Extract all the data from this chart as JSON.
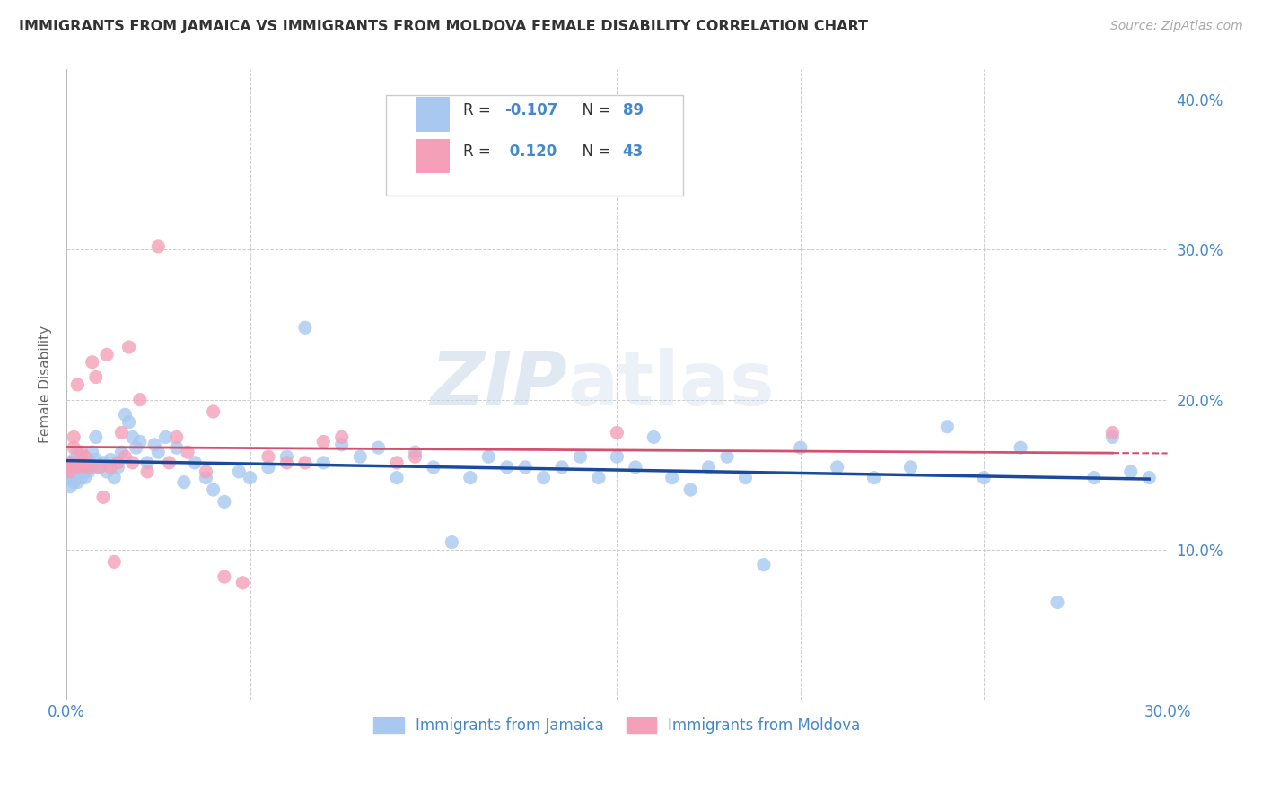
{
  "title": "IMMIGRANTS FROM JAMAICA VS IMMIGRANTS FROM MOLDOVA FEMALE DISABILITY CORRELATION CHART",
  "source": "Source: ZipAtlas.com",
  "ylabel": "Female Disability",
  "xlim": [
    0.0,
    0.3
  ],
  "ylim": [
    0.0,
    0.42
  ],
  "jamaica_color": "#a8c8f0",
  "moldova_color": "#f4a0b8",
  "jamaica_line_color": "#1a4a9e",
  "moldova_line_color": "#d45070",
  "watermark_zip": "ZIP",
  "watermark_atlas": "atlas",
  "tick_color": "#4488cc",
  "grid_color": "#cccccc",
  "background_color": "#ffffff",
  "title_color": "#333333",
  "jamaica_x": [
    0.001,
    0.001,
    0.001,
    0.001,
    0.001,
    0.002,
    0.002,
    0.002,
    0.002,
    0.002,
    0.003,
    0.003,
    0.003,
    0.003,
    0.004,
    0.004,
    0.004,
    0.005,
    0.005,
    0.006,
    0.006,
    0.007,
    0.007,
    0.008,
    0.008,
    0.009,
    0.01,
    0.011,
    0.012,
    0.013,
    0.014,
    0.015,
    0.016,
    0.017,
    0.018,
    0.019,
    0.02,
    0.022,
    0.024,
    0.025,
    0.027,
    0.03,
    0.032,
    0.035,
    0.038,
    0.04,
    0.043,
    0.047,
    0.05,
    0.055,
    0.06,
    0.065,
    0.07,
    0.075,
    0.08,
    0.085,
    0.09,
    0.095,
    0.1,
    0.105,
    0.11,
    0.115,
    0.12,
    0.125,
    0.13,
    0.135,
    0.14,
    0.145,
    0.15,
    0.155,
    0.16,
    0.165,
    0.17,
    0.175,
    0.18,
    0.185,
    0.19,
    0.2,
    0.21,
    0.22,
    0.23,
    0.24,
    0.25,
    0.26,
    0.27,
    0.28,
    0.285,
    0.29,
    0.295
  ],
  "jamaica_y": [
    0.155,
    0.148,
    0.142,
    0.158,
    0.151,
    0.145,
    0.152,
    0.16,
    0.148,
    0.155,
    0.152,
    0.165,
    0.145,
    0.158,
    0.148,
    0.155,
    0.162,
    0.155,
    0.148,
    0.152,
    0.16,
    0.155,
    0.165,
    0.175,
    0.16,
    0.155,
    0.158,
    0.152,
    0.16,
    0.148,
    0.155,
    0.165,
    0.19,
    0.185,
    0.175,
    0.168,
    0.172,
    0.158,
    0.17,
    0.165,
    0.175,
    0.168,
    0.145,
    0.158,
    0.148,
    0.14,
    0.132,
    0.152,
    0.148,
    0.155,
    0.162,
    0.248,
    0.158,
    0.17,
    0.162,
    0.168,
    0.148,
    0.165,
    0.155,
    0.105,
    0.148,
    0.162,
    0.155,
    0.155,
    0.148,
    0.155,
    0.162,
    0.148,
    0.162,
    0.155,
    0.175,
    0.148,
    0.14,
    0.155,
    0.162,
    0.148,
    0.09,
    0.168,
    0.155,
    0.148,
    0.155,
    0.182,
    0.148,
    0.168,
    0.065,
    0.148,
    0.175,
    0.152,
    0.148
  ],
  "moldova_x": [
    0.001,
    0.001,
    0.002,
    0.002,
    0.002,
    0.003,
    0.003,
    0.004,
    0.004,
    0.005,
    0.005,
    0.006,
    0.007,
    0.008,
    0.009,
    0.01,
    0.011,
    0.012,
    0.013,
    0.014,
    0.015,
    0.016,
    0.017,
    0.018,
    0.02,
    0.022,
    0.025,
    0.028,
    0.03,
    0.033,
    0.038,
    0.04,
    0.043,
    0.048,
    0.055,
    0.06,
    0.065,
    0.07,
    0.075,
    0.09,
    0.095,
    0.15,
    0.285
  ],
  "moldova_y": [
    0.152,
    0.158,
    0.168,
    0.175,
    0.155,
    0.21,
    0.155,
    0.158,
    0.165,
    0.155,
    0.162,
    0.155,
    0.225,
    0.215,
    0.155,
    0.135,
    0.23,
    0.155,
    0.092,
    0.158,
    0.178,
    0.162,
    0.235,
    0.158,
    0.2,
    0.152,
    0.302,
    0.158,
    0.175,
    0.165,
    0.152,
    0.192,
    0.082,
    0.078,
    0.162,
    0.158,
    0.158,
    0.172,
    0.175,
    0.158,
    0.162,
    0.178,
    0.178
  ]
}
